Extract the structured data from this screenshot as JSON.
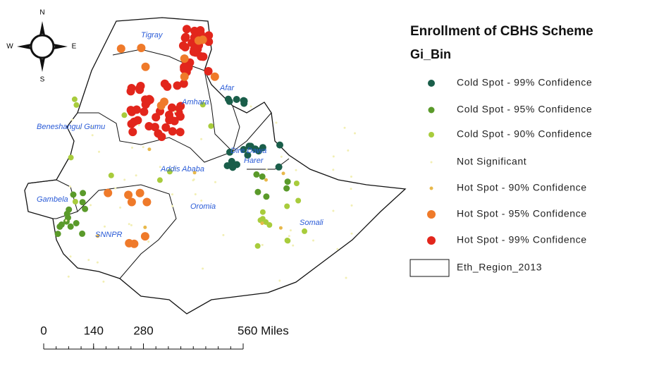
{
  "title": "Enrollment of CBHS Scheme",
  "subtitle": "Gi_Bin",
  "legend": [
    {
      "label": "Cold Spot - 99% Confidence",
      "color": "#1a5e4a"
    },
    {
      "label": "Cold Spot - 95% Confidence",
      "color": "#5a9a2a"
    },
    {
      "label": "Cold Spot - 90% Confidence",
      "color": "#a8cc3c"
    },
    {
      "label": "Not Significant",
      "color": "#f2efb4"
    },
    {
      "label": "Hot Spot - 90% Confidence",
      "color": "#e8b84a"
    },
    {
      "label": "Hot Spot - 95% Confidence",
      "color": "#ef7a2a"
    },
    {
      "label": "Hot Spot - 99% Confidence",
      "color": "#e2261c"
    }
  ],
  "boundary_label": "Eth_Region_2013",
  "regions": [
    "Tigray",
    "Afar",
    "Amhara",
    "Beneshangul Gumu",
    "Addis Ababa",
    "Dire Dawa",
    "Harer",
    "Gambela",
    "Oromia",
    "SNNPR",
    "Somali"
  ],
  "compass": {
    "north": "N",
    "south": "S",
    "east": "E",
    "west": "W"
  },
  "scale_bar": {
    "ticks": [
      0,
      140,
      280,
      {
        "value": 560,
        "label": "560 Miles"
      }
    ]
  }
}
